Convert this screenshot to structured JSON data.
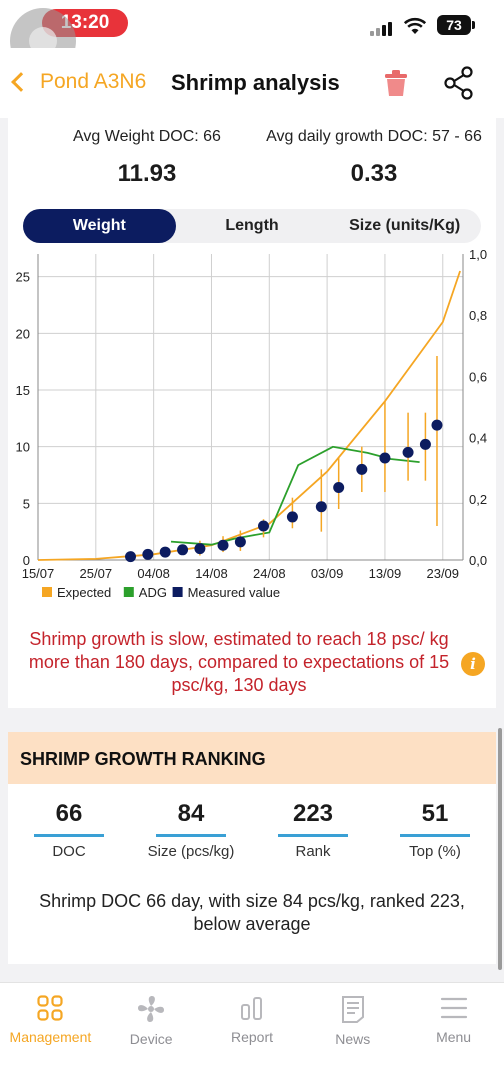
{
  "status_bar": {
    "time": "13:20",
    "battery": "73"
  },
  "nav": {
    "back_label": "Pond A3N6",
    "title": "Shrimp analysis",
    "icons": [
      "trash-icon",
      "share-icon"
    ]
  },
  "stats": {
    "left": {
      "label": "Avg Weight DOC: 66",
      "value": "11.93"
    },
    "right": {
      "label": "Avg daily growth DOC: 57 - 66",
      "value": "0.33"
    }
  },
  "tabs": [
    {
      "label": "Weight",
      "active": true
    },
    {
      "label": "Length",
      "active": false
    },
    {
      "label": "Size (units/Kg)",
      "active": false
    }
  ],
  "chart_data": {
    "type": "line",
    "title": "",
    "x_ticks": [
      "15/07",
      "25/07",
      "04/08",
      "14/08",
      "24/08",
      "03/09",
      "13/09",
      "23/09"
    ],
    "y_left_ticks": [
      "0",
      "5",
      "10",
      "15",
      "20",
      "25"
    ],
    "y_left_range": [
      0,
      27
    ],
    "y_right_ticks": [
      "0,0",
      "0,2",
      "0,4",
      "0,6",
      "0,8",
      "1,0"
    ],
    "y_right_range": [
      0,
      1.0
    ],
    "legend": [
      {
        "name": "Expected",
        "color": "#f5a623"
      },
      {
        "name": "ADG",
        "color": "#2ca02c"
      },
      {
        "name": "Measured value",
        "color": "#0c1c60"
      }
    ],
    "series": [
      {
        "name": "Expected",
        "axis": "left",
        "x": [
          "15/07",
          "25/07",
          "04/08",
          "14/08",
          "24/08",
          "03/09",
          "13/09",
          "23/09",
          "26/09"
        ],
        "y": [
          0.0,
          0.1,
          0.5,
          1.3,
          3.2,
          7.8,
          14.0,
          21.0,
          25.5
        ]
      },
      {
        "name": "ADG",
        "axis": "right",
        "x": [
          "07/08",
          "14/08",
          "18/08",
          "21/08",
          "24/08",
          "29/08",
          "04/09",
          "10/09",
          "14/09",
          "19/09"
        ],
        "y": [
          0.06,
          0.05,
          0.07,
          0.08,
          0.09,
          0.31,
          0.37,
          0.35,
          0.33,
          0.32
        ]
      },
      {
        "name": "Measured value",
        "axis": "left",
        "x": [
          "31/07",
          "03/08",
          "06/08",
          "09/08",
          "12/08",
          "16/08",
          "19/08",
          "23/08",
          "28/08",
          "02/09",
          "05/09",
          "09/09",
          "13/09",
          "17/09",
          "20/09",
          "22/09"
        ],
        "y": [
          0.3,
          0.5,
          0.7,
          0.9,
          1.0,
          1.3,
          1.6,
          3.0,
          3.8,
          4.7,
          6.4,
          8.0,
          9.0,
          9.5,
          10.2,
          11.9
        ],
        "error_low": [
          0.1,
          0.3,
          0.4,
          0.5,
          0.4,
          0.7,
          0.8,
          2.0,
          2.8,
          2.5,
          4.5,
          6.0,
          6.0,
          7.0,
          7.0,
          3.0
        ],
        "error_high": [
          0.5,
          0.8,
          1.0,
          1.2,
          1.7,
          2.1,
          2.6,
          3.6,
          5.5,
          8.0,
          9.0,
          10.0,
          14.0,
          13.0,
          13.0,
          18.0
        ]
      }
    ]
  },
  "message": "Shrimp growth is slow, estimated to reach 18 psc/ kg more than 180 days, compared to expectations of 15 psc/kg, 130 days",
  "ranking": {
    "title": "SHRIMP GROWTH RANKING",
    "metrics": [
      {
        "value": "66",
        "label": "DOC"
      },
      {
        "value": "84",
        "label": "Size (pcs/kg)"
      },
      {
        "value": "223",
        "label": "Rank"
      },
      {
        "value": "51",
        "label": "Top (%)"
      }
    ],
    "summary": "Shrimp DOC 66 day, with size 84 pcs/kg, ranked 223, below average"
  },
  "bottom_tabs": [
    {
      "label": "Management",
      "icon": "grid-icon",
      "active": true
    },
    {
      "label": "Device",
      "icon": "fan-icon",
      "active": false
    },
    {
      "label": "Report",
      "icon": "bar-chart-icon",
      "active": false
    },
    {
      "label": "News",
      "icon": "document-icon",
      "active": false
    },
    {
      "label": "Menu",
      "icon": "menu-icon",
      "active": false
    }
  ]
}
